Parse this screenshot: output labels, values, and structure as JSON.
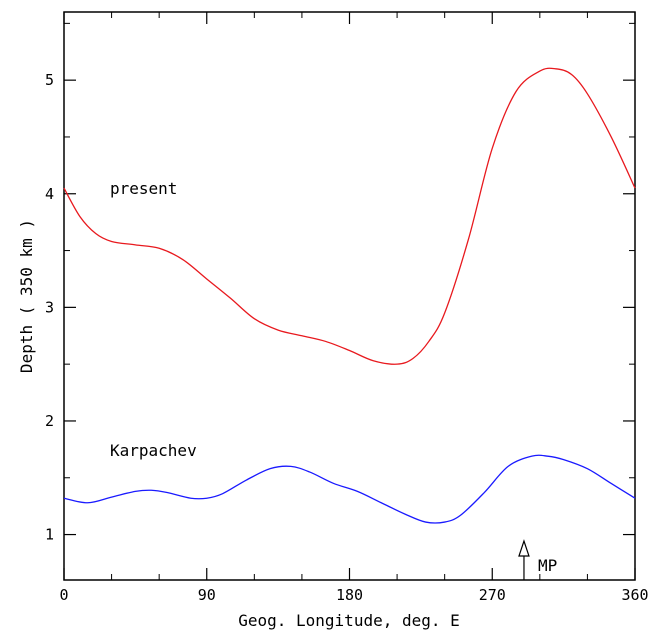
{
  "chart_data": {
    "type": "line",
    "xlabel": "Geog. Longitude,  deg. E",
    "ylabel": "Depth ( 350 km )",
    "xlim": [
      0,
      360
    ],
    "ylim": [
      0.6,
      5.6
    ],
    "grid": false,
    "x_ticks": [
      0,
      90,
      180,
      270,
      360
    ],
    "x_tick_labels": [
      "0",
      "90",
      "180",
      "270",
      "360"
    ],
    "y_ticks": [
      1,
      2,
      3,
      4,
      5
    ],
    "y_tick_labels": [
      "1",
      "2",
      "3",
      "4",
      "5"
    ],
    "series": [
      {
        "name": "present",
        "color": "#e8191e",
        "x": [
          0,
          10,
          20,
          30,
          45,
          60,
          75,
          90,
          105,
          120,
          135,
          150,
          165,
          180,
          195,
          210,
          220,
          230,
          240,
          255,
          270,
          285,
          300,
          310,
          320,
          330,
          345,
          360
        ],
        "y": [
          4.05,
          3.8,
          3.65,
          3.58,
          3.55,
          3.52,
          3.42,
          3.25,
          3.08,
          2.9,
          2.8,
          2.75,
          2.7,
          2.62,
          2.53,
          2.5,
          2.55,
          2.7,
          2.95,
          3.6,
          4.4,
          4.9,
          5.08,
          5.1,
          5.05,
          4.88,
          4.5,
          4.05
        ]
      },
      {
        "name": "Karpachev",
        "color": "#1a1aff",
        "x": [
          0,
          15,
          30,
          45,
          55,
          65,
          80,
          90,
          100,
          115,
          130,
          143,
          155,
          170,
          185,
          200,
          215,
          228,
          240,
          250,
          265,
          280,
          295,
          305,
          315,
          330,
          345,
          360
        ],
        "y": [
          1.32,
          1.28,
          1.33,
          1.38,
          1.39,
          1.37,
          1.32,
          1.32,
          1.36,
          1.48,
          1.58,
          1.6,
          1.55,
          1.45,
          1.38,
          1.28,
          1.18,
          1.11,
          1.11,
          1.17,
          1.37,
          1.6,
          1.69,
          1.69,
          1.66,
          1.58,
          1.45,
          1.32
        ]
      }
    ],
    "annotations": [
      {
        "text": "present"
      },
      {
        "text": "Karpachev"
      },
      {
        "text": "MP",
        "x": 290
      }
    ]
  }
}
